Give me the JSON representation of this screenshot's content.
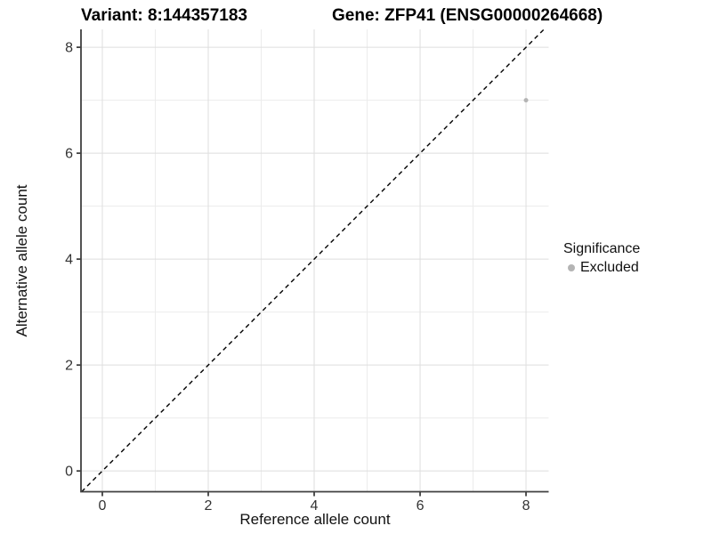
{
  "chart_data": {
    "type": "scatter",
    "title_left": "Variant: 8:144357183",
    "title_right": "Gene: ZFP41 (ENSG00000264668)",
    "xlabel": "Reference allele count",
    "ylabel": "Alternative allele count",
    "xlim": [
      -0.403,
      8.428
    ],
    "ylim": [
      -0.392,
      8.338
    ],
    "x_ticks": [
      0,
      2,
      4,
      6,
      8
    ],
    "y_ticks": [
      0,
      2,
      4,
      6,
      8
    ],
    "x_minor": [
      1,
      3,
      5,
      7
    ],
    "y_minor": [
      1,
      3,
      5,
      7
    ],
    "grid": true,
    "points": [
      {
        "x": 8,
        "y": 7,
        "significance": "Excluded"
      }
    ],
    "identity_line": {
      "slope": 1,
      "intercept": 0,
      "style": "dashed"
    },
    "legend": {
      "title": "Significance",
      "position": "right",
      "items": [
        {
          "label": "Excluded",
          "color": "#b4b4b4"
        }
      ]
    },
    "colors": {
      "background": "#ffffff",
      "point": "#b4b4b4",
      "grid_major": "#dedede",
      "grid_minor": "#ececec",
      "axis": "#404040",
      "tick_text": "#333333",
      "dashed_line": "#000000"
    }
  }
}
